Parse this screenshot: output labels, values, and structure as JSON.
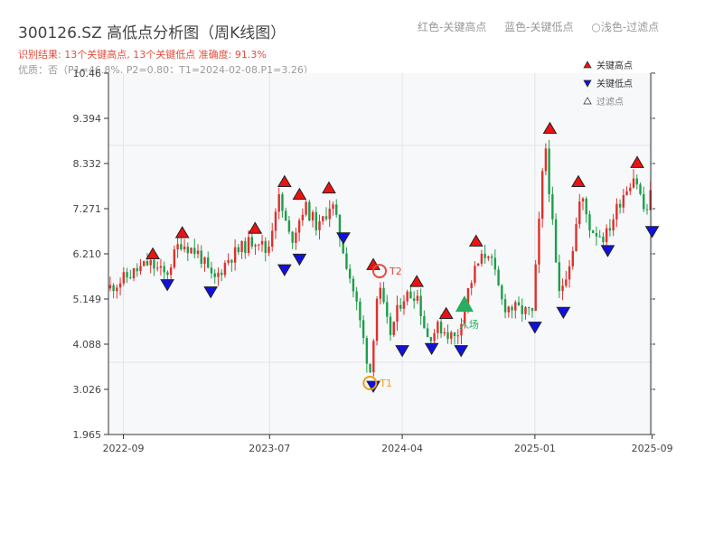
{
  "header": {
    "title": "300126.SZ 高低点分析图（周K线图）",
    "result": "识别结果: 13个关键高点, 13个关键低点   准确度: 91.3%",
    "quality": "优质：否（P1=46.8%, P2=0.80；T1=2024-02-08,P1=3.26）",
    "top_legend": [
      "红色-关键高点",
      "蓝色-关键低点",
      "○浅色-过滤点"
    ]
  },
  "chart_data": {
    "type": "candlestick",
    "x_ticks": [
      "2022-09",
      "2023-07",
      "2024-04",
      "2025-01",
      "2025-09"
    ],
    "y_ticks": [
      "1.965",
      "3.026",
      "4.088",
      "5.149",
      "6.210",
      "7.271",
      "8.332",
      "9.394",
      "10.46"
    ],
    "ylim": [
      1.965,
      10.46
    ],
    "legend": {
      "placement": "top-right",
      "items": [
        "关键高点",
        "关键低点",
        "过滤点"
      ]
    },
    "colors": {
      "up": "#e0302c",
      "down": "#1e9e4a",
      "high_marker": "#ee1111",
      "low_marker": "#1111dd",
      "t1": "#f39c12",
      "t2": "#e74c3c",
      "entry": "#27ae60",
      "plot_bg": "#f6f8fa"
    },
    "key_highs": [
      {
        "date": "2022-11",
        "price": 6.05
      },
      {
        "date": "2023-01",
        "price": 6.55
      },
      {
        "date": "2023-06",
        "price": 6.65
      },
      {
        "date": "2023-08",
        "price": 7.75
      },
      {
        "date": "2023-09",
        "price": 7.45
      },
      {
        "date": "2023-11",
        "price": 7.6
      },
      {
        "date": "2024-02",
        "price": 5.8
      },
      {
        "date": "2024-05",
        "price": 5.4
      },
      {
        "date": "2024-07",
        "price": 4.65
      },
      {
        "date": "2024-09",
        "price": 6.35
      },
      {
        "date": "2025-02",
        "price": 9.0
      },
      {
        "date": "2025-04",
        "price": 7.75
      },
      {
        "date": "2025-08",
        "price": 8.2
      }
    ],
    "key_lows": [
      {
        "date": "2022-12",
        "price": 5.65
      },
      {
        "date": "2023-03",
        "price": 5.48
      },
      {
        "date": "2023-08",
        "price": 6.0
      },
      {
        "date": "2023-09",
        "price": 6.25
      },
      {
        "date": "2023-12",
        "price": 6.75
      },
      {
        "date": "2024-02",
        "price": 3.26
      },
      {
        "date": "2024-04",
        "price": 4.1
      },
      {
        "date": "2024-06",
        "price": 4.15
      },
      {
        "date": "2024-08",
        "price": 4.1
      },
      {
        "date": "2025-01",
        "price": 4.65
      },
      {
        "date": "2025-03",
        "price": 5.0
      },
      {
        "date": "2025-06",
        "price": 6.45
      },
      {
        "date": "2025-09",
        "price": 6.9
      }
    ],
    "t1": {
      "label": "T1",
      "date": "2024-02",
      "price": 3.26
    },
    "t2": {
      "label": "T2",
      "date": "2024-02",
      "price": 5.85
    },
    "entry": {
      "label": "入场",
      "date": "2024-08",
      "price": 5.0
    }
  }
}
